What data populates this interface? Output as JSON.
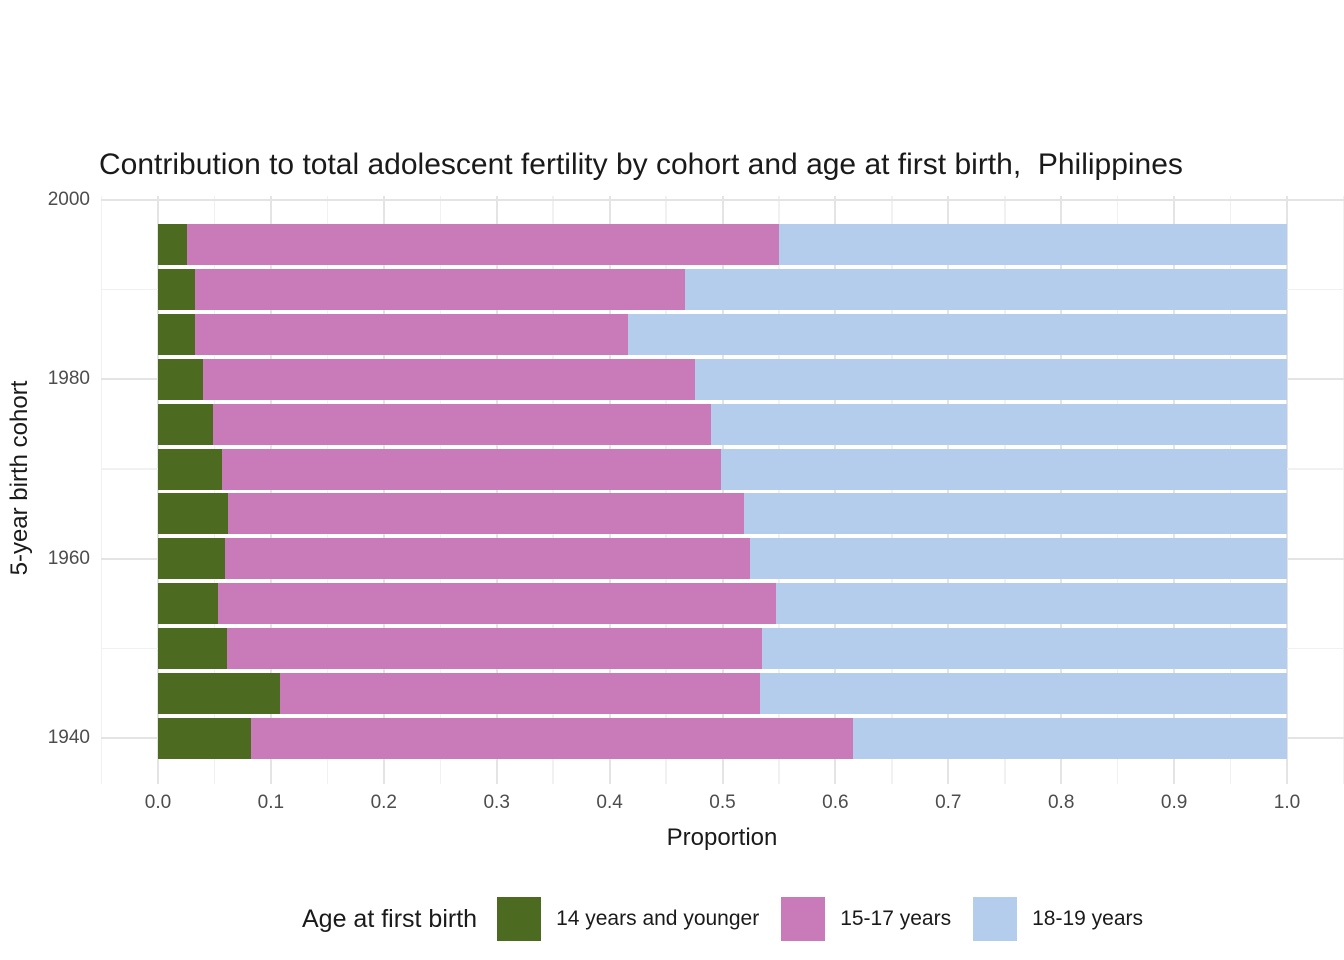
{
  "title": "Contribution to total adolescent fertility by cohort and age at first birth,  Philippines",
  "axes": {
    "x": {
      "label": "Proportion",
      "tick_labels": [
        "0.0",
        "0.1",
        "0.2",
        "0.3",
        "0.4",
        "0.5",
        "0.6",
        "0.7",
        "0.8",
        "0.9",
        "1.0"
      ],
      "tick_values": [
        0,
        0.1,
        0.2,
        0.3,
        0.4,
        0.5,
        0.6,
        0.7,
        0.8,
        0.9,
        1.0
      ]
    },
    "y": {
      "label": "5-year birth cohort",
      "tick_labels": [
        "2000",
        "1980",
        "1960",
        "1940"
      ],
      "tick_values": [
        2000,
        1980,
        1960,
        1940
      ],
      "minor_values": [
        1990,
        1970,
        1950
      ]
    }
  },
  "legend": {
    "title": "Age at first birth",
    "items": [
      {
        "label": "14 years and younger",
        "color": "#4d6b20"
      },
      {
        "label": "15-17 years",
        "color": "#c87bb8"
      },
      {
        "label": "18-19 years",
        "color": "#b4cdec"
      }
    ]
  },
  "chart_data": {
    "type": "bar",
    "orientation": "horizontal",
    "stacked": true,
    "title": "Contribution to total adolescent fertility by cohort and age at first birth,  Philippines",
    "xlabel": "Proportion",
    "ylabel": "5-year birth cohort",
    "xlim": [
      0,
      1
    ],
    "grid": true,
    "legend_position": "bottom",
    "categories": [
      1995,
      1990,
      1985,
      1980,
      1975,
      1970,
      1965,
      1960,
      1955,
      1950,
      1945,
      1940
    ],
    "series": [
      {
        "name": "14 years and younger",
        "color": "#4d6b20",
        "values": [
          0.026,
          0.033,
          0.033,
          0.04,
          0.049,
          0.057,
          0.062,
          0.059,
          0.053,
          0.061,
          0.108,
          0.082
        ]
      },
      {
        "name": "15-17 years",
        "color": "#c87bb8",
        "values": [
          0.524,
          0.434,
          0.383,
          0.436,
          0.441,
          0.442,
          0.457,
          0.465,
          0.494,
          0.474,
          0.425,
          0.534
        ]
      },
      {
        "name": "18-19 years",
        "color": "#b4cdec",
        "values": [
          0.45,
          0.533,
          0.584,
          0.524,
          0.51,
          0.501,
          0.481,
          0.476,
          0.453,
          0.465,
          0.467,
          0.384
        ]
      }
    ]
  }
}
